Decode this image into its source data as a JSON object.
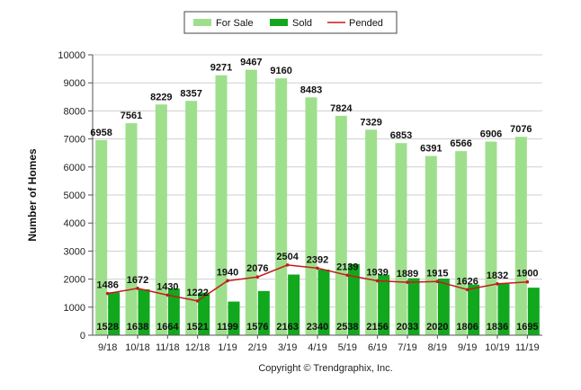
{
  "chart_data": {
    "type": "bar",
    "title": "",
    "xlabel": "",
    "ylabel": "Number of Homes",
    "ylim": [
      0,
      10000
    ],
    "yticks": [
      0,
      1000,
      2000,
      3000,
      4000,
      5000,
      6000,
      7000,
      8000,
      9000,
      10000
    ],
    "grid": true,
    "legend_position": "top-center",
    "categories": [
      "9/18",
      "10/18",
      "11/18",
      "12/18",
      "1/19",
      "2/19",
      "3/19",
      "4/19",
      "5/19",
      "6/19",
      "7/19",
      "8/19",
      "9/19",
      "10/19",
      "11/19"
    ],
    "series": [
      {
        "name": "For Sale",
        "type": "bar",
        "color": "#9edf8c",
        "values": [
          6958,
          7561,
          8229,
          8357,
          9271,
          9467,
          9160,
          8483,
          7824,
          7329,
          6853,
          6391,
          6566,
          6906,
          7076
        ]
      },
      {
        "name": "Sold",
        "type": "bar",
        "color": "#12a81e",
        "values": [
          1528,
          1638,
          1664,
          1521,
          1199,
          1576,
          2163,
          2340,
          2538,
          2156,
          2033,
          2020,
          1806,
          1836,
          1695
        ]
      },
      {
        "name": "Pended",
        "type": "line",
        "color": "#c41a1a",
        "values": [
          1486,
          1672,
          1430,
          1222,
          1940,
          2076,
          2504,
          2392,
          2139,
          1939,
          1889,
          1915,
          1626,
          1832,
          1900
        ]
      }
    ],
    "footer": "Copyright © Trendgraphix, Inc."
  }
}
